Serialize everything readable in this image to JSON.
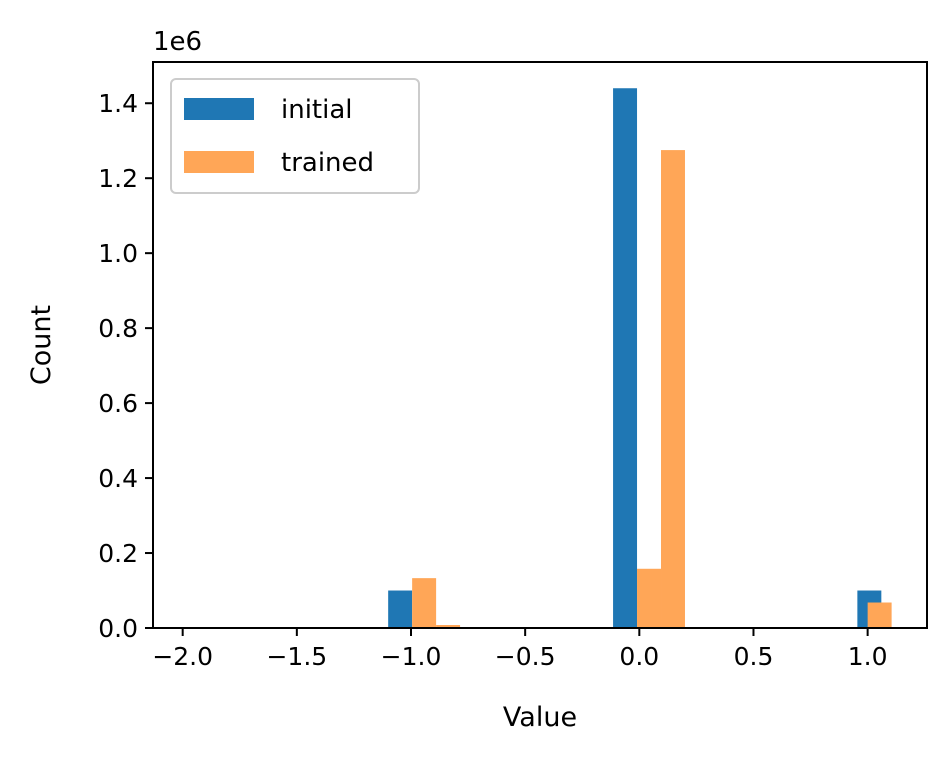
{
  "chart_data": {
    "type": "bar",
    "xlabel": "Value",
    "ylabel": "Count",
    "y_offset_label": "1e6",
    "xlim": [
      -2.13,
      1.26
    ],
    "ylim": [
      0,
      1.51
    ],
    "x_ticks": [
      -2.0,
      -1.5,
      -1.0,
      -0.5,
      0.0,
      0.5,
      1.0
    ],
    "x_tick_labels": [
      "−2.0",
      "−1.5",
      "−1.0",
      "−0.5",
      "0.0",
      "0.5",
      "1.0"
    ],
    "y_ticks": [
      0.0,
      0.2,
      0.4,
      0.6,
      0.8,
      1.0,
      1.2,
      1.4
    ],
    "y_tick_labels": [
      "0.0",
      "0.2",
      "0.4",
      "0.6",
      "0.8",
      "1.0",
      "1.2",
      "1.4"
    ],
    "grid": false,
    "legend_position": "top-left",
    "series": [
      {
        "name": "initial",
        "color": "#1f77b4",
        "bins": [
          {
            "x0": -1.1,
            "x1": -0.995,
            "value": 0.1
          },
          {
            "x0": -0.115,
            "x1": -0.01,
            "value": 1.44
          },
          {
            "x0": 0.955,
            "x1": 1.06,
            "value": 0.1
          }
        ]
      },
      {
        "name": "trained",
        "color": "#ffa657",
        "bins": [
          {
            "x0": -0.995,
            "x1": -0.89,
            "value": 0.133
          },
          {
            "x0": -0.89,
            "x1": -0.785,
            "value": 0.008
          },
          {
            "x0": -0.01,
            "x1": 0.095,
            "value": 0.158
          },
          {
            "x0": 0.095,
            "x1": 0.2,
            "value": 1.275
          },
          {
            "x0": 1.0,
            "x1": 1.105,
            "value": 0.068
          }
        ]
      }
    ]
  }
}
